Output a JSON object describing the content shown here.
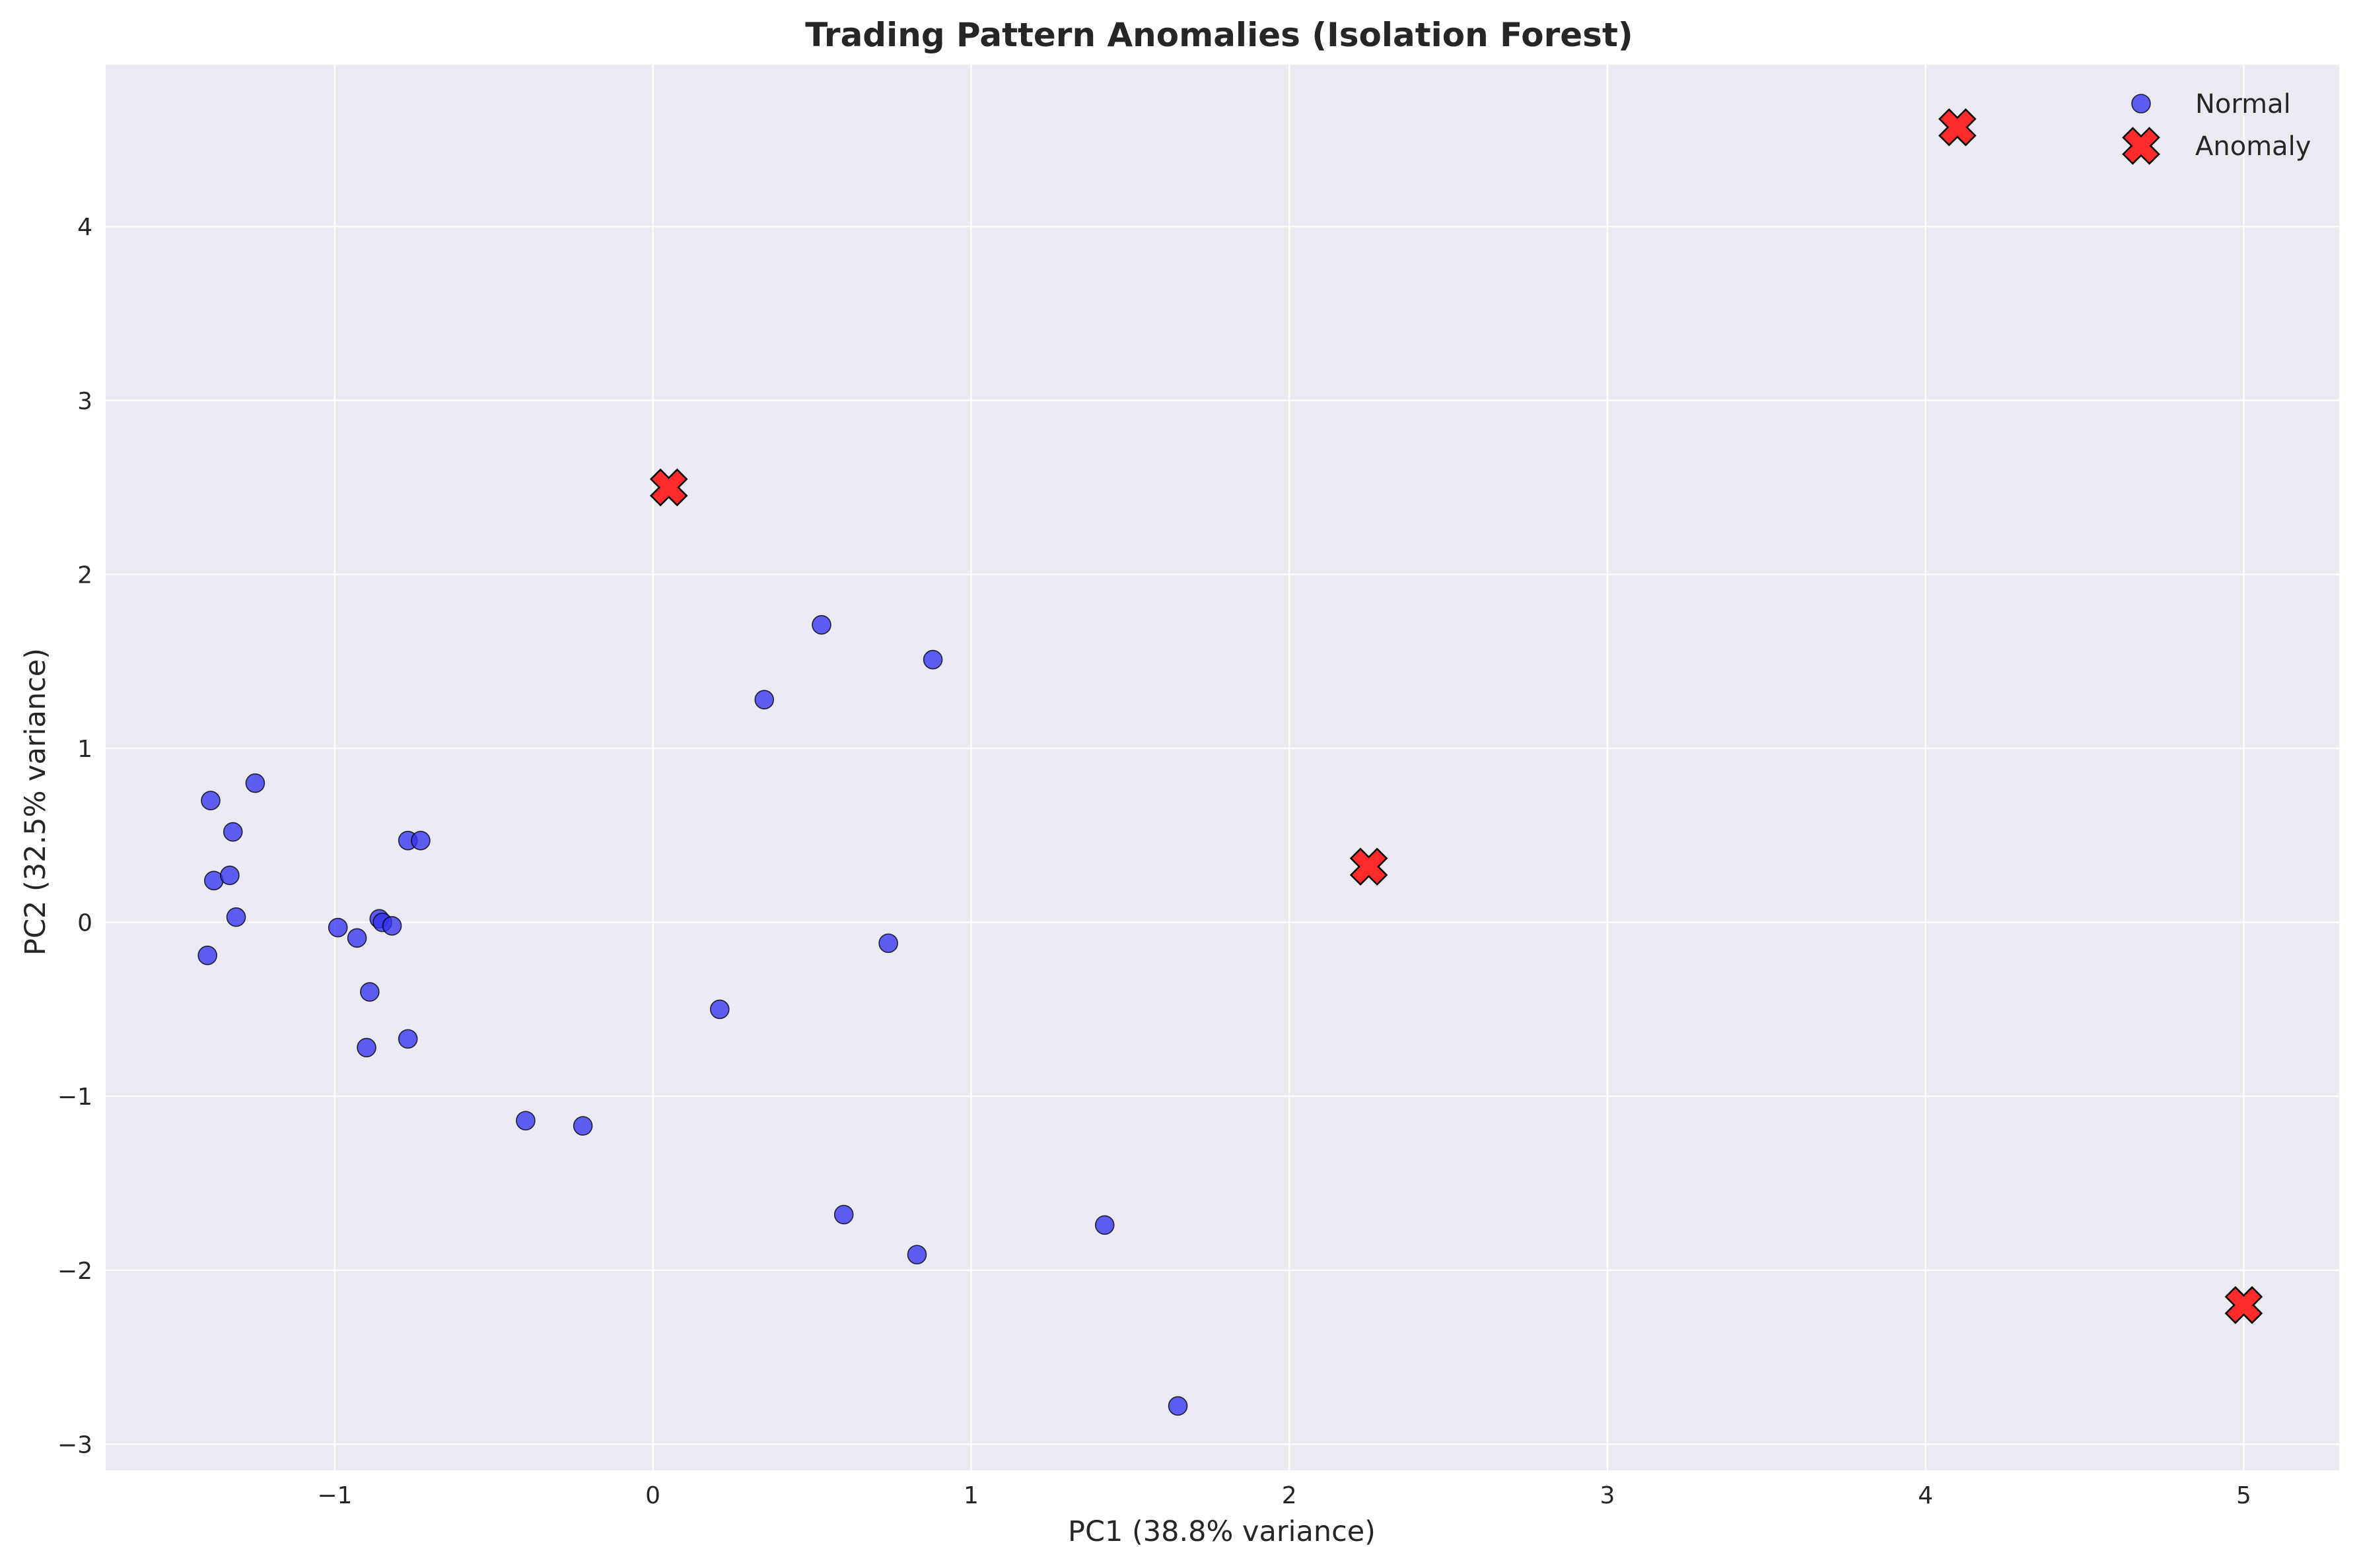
{
  "chart_data": {
    "type": "scatter",
    "title": "Trading Pattern Anomalies (Isolation Forest)",
    "xlabel": "PC1 (38.8% variance)",
    "ylabel": "PC2 (32.5% variance)",
    "xlim": [
      -1.72,
      5.3
    ],
    "ylim": [
      -3.15,
      4.93
    ],
    "xticks": [
      -1,
      0,
      1,
      2,
      3,
      4,
      5
    ],
    "yticks": [
      -3,
      -2,
      -1,
      0,
      1,
      2,
      3,
      4
    ],
    "xtick_labels": [
      "−1",
      "0",
      "1",
      "2",
      "3",
      "4",
      "5"
    ],
    "ytick_labels": [
      "−3",
      "−2",
      "−1",
      "0",
      "1",
      "2",
      "3",
      "4"
    ],
    "grid": true,
    "legend_position": "top-right",
    "series": [
      {
        "name": "Normal",
        "marker": "circle",
        "color": "#3333ee",
        "points": [
          [
            -1.39,
            0.7
          ],
          [
            -1.25,
            0.8
          ],
          [
            -1.32,
            0.52
          ],
          [
            -1.38,
            0.24
          ],
          [
            -1.33,
            0.27
          ],
          [
            -1.31,
            0.03
          ],
          [
            -1.4,
            -0.19
          ],
          [
            -0.99,
            -0.03
          ],
          [
            -0.93,
            -0.09
          ],
          [
            -0.86,
            0.02
          ],
          [
            -0.85,
            0.0
          ],
          [
            -0.82,
            -0.02
          ],
          [
            -0.77,
            0.47
          ],
          [
            -0.73,
            0.47
          ],
          [
            -0.89,
            -0.4
          ],
          [
            -0.9,
            -0.72
          ],
          [
            -0.77,
            -0.67
          ],
          [
            -0.4,
            -1.14
          ],
          [
            -0.22,
            -1.17
          ],
          [
            0.21,
            -0.5
          ],
          [
            0.35,
            1.28
          ],
          [
            0.53,
            1.71
          ],
          [
            0.88,
            1.51
          ],
          [
            0.74,
            -0.12
          ],
          [
            0.6,
            -1.68
          ],
          [
            0.83,
            -1.91
          ],
          [
            1.42,
            -1.74
          ],
          [
            1.65,
            -2.78
          ]
        ]
      },
      {
        "name": "Anomaly",
        "marker": "x-filled",
        "color": "#ff1a1a",
        "points": [
          [
            0.05,
            2.5
          ],
          [
            2.25,
            0.32
          ],
          [
            4.1,
            4.57
          ],
          [
            5.0,
            -2.2
          ]
        ]
      }
    ]
  },
  "colors": {
    "plot_background": "#eaeaf2",
    "grid": "#ffffff",
    "normal": "#3333ee",
    "anomaly": "#ff1a1a",
    "marker_edge": "#000000"
  }
}
